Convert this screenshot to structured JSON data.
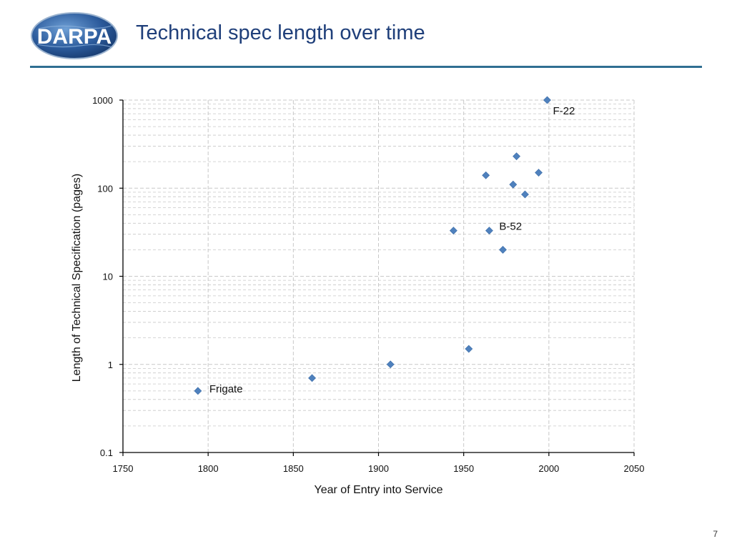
{
  "header": {
    "logo_text": "DARPA",
    "title": "Technical spec length over time"
  },
  "page_number": "7",
  "colors": {
    "title": "#1f3f7a",
    "rule": "#2f6f92",
    "marker": "#4f81bd",
    "grid": "#c8c8c8",
    "logo_globe": "#2c5b9c"
  },
  "chart_data": {
    "type": "scatter",
    "title": "",
    "xlabel": "Year of Entry into Service",
    "ylabel": "Length of Technical Specification (pages)",
    "xlim": [
      1750,
      2050
    ],
    "ylim": [
      0.1,
      1000
    ],
    "yscale": "log",
    "xticks": [
      1750,
      1800,
      1850,
      1900,
      1950,
      2000,
      2050
    ],
    "yticks": [
      {
        "value": 0.1,
        "label": "0.1"
      },
      {
        "value": 1,
        "label": "1"
      },
      {
        "value": 10,
        "label": "10"
      },
      {
        "value": 100,
        "label": "100"
      },
      {
        "value": 1000,
        "label": "1000"
      }
    ],
    "grid": true,
    "legend": "none",
    "marker": "diamond",
    "points": [
      {
        "x": 1794,
        "y": 0.5
      },
      {
        "x": 1861,
        "y": 0.7
      },
      {
        "x": 1907,
        "y": 1.0
      },
      {
        "x": 1944,
        "y": 33
      },
      {
        "x": 1953,
        "y": 1.5
      },
      {
        "x": 1963,
        "y": 140
      },
      {
        "x": 1965,
        "y": 33
      },
      {
        "x": 1973,
        "y": 20
      },
      {
        "x": 1979,
        "y": 110
      },
      {
        "x": 1981,
        "y": 230
      },
      {
        "x": 1986,
        "y": 85
      },
      {
        "x": 1994,
        "y": 150
      },
      {
        "x": 1999,
        "y": 1000
      }
    ],
    "annotations": [
      {
        "text": "Frigate",
        "x": 1794,
        "y": 0.5
      },
      {
        "text": "B-52",
        "x": 1965,
        "y": 33
      },
      {
        "text": "F-22",
        "x": 1999,
        "y": 1000
      }
    ]
  }
}
